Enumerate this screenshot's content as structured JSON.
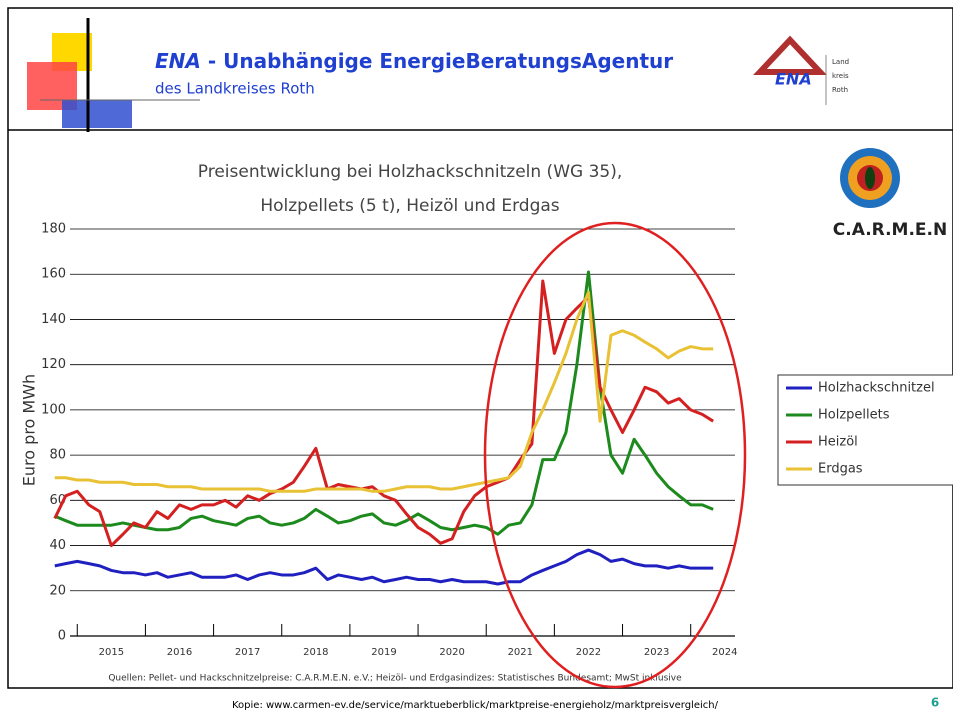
{
  "header": {
    "title_abbr": "ENA",
    "title_rest": " - Unabhängige EnergieBeratungsAgentur",
    "subtitle": "des Landkreises Roth",
    "logo_text": "ENA",
    "logo_side": [
      "Land",
      "kreis",
      "Roth"
    ]
  },
  "carmen_logo": "C.A.R.M.E.N",
  "footer": {
    "copy": "Kopie: www.carmen-ev.de/service/marktueberblick/marktpreise-energieholz/marktpreisvergleich/",
    "page": "6"
  },
  "chart_data": {
    "type": "line",
    "title": [
      "Preisentwicklung bei Holzhackschnitzeln (WG 35),",
      "Holzpellets (5 t), Heizöl und Erdgas"
    ],
    "y_label": "Euro pro MWh",
    "source": "Quellen: Pellet- und Hackschnitzelpreise: C.A.R.M.E.N. e.V.; Heizöl- und Erdgasindizes: Statistisches Bundesamt; MwSt inklusive",
    "x": [
      2014.67,
      2014.83,
      2015,
      2015.17,
      2015.33,
      2015.5,
      2015.67,
      2015.83,
      2016,
      2016.17,
      2016.33,
      2016.5,
      2016.67,
      2016.83,
      2017,
      2017.17,
      2017.33,
      2017.5,
      2017.67,
      2017.83,
      2018,
      2018.17,
      2018.33,
      2018.5,
      2018.67,
      2018.83,
      2019,
      2019.17,
      2019.33,
      2019.5,
      2019.67,
      2019.83,
      2020,
      2020.17,
      2020.33,
      2020.5,
      2020.67,
      2020.83,
      2021,
      2021.17,
      2021.33,
      2021.5,
      2021.67,
      2021.83,
      2022,
      2022.17,
      2022.33,
      2022.5,
      2022.67,
      2022.83,
      2023,
      2023.17,
      2023.33,
      2023.5,
      2023.67,
      2023.83,
      2024,
      2024.17,
      2024.33
    ],
    "series": [
      {
        "name": "Holzhackschnitzel",
        "color": "#2020c0",
        "values": [
          31,
          32,
          33,
          32,
          31,
          29,
          28,
          28,
          27,
          28,
          26,
          27,
          28,
          26,
          26,
          26,
          27,
          25,
          27,
          28,
          27,
          27,
          28,
          30,
          25,
          27,
          26,
          25,
          26,
          24,
          25,
          26,
          25,
          25,
          24,
          25,
          24,
          24,
          24,
          23,
          24,
          24,
          27,
          29,
          31,
          33,
          36,
          38,
          36,
          33,
          34,
          32,
          31,
          31,
          30,
          31,
          30,
          30,
          30
        ]
      },
      {
        "name": "Holzpellets",
        "color": "#1c8a1c",
        "values": [
          53,
          51,
          49,
          49,
          49,
          49,
          50,
          49,
          48,
          47,
          47,
          48,
          52,
          53,
          51,
          50,
          49,
          52,
          53,
          50,
          49,
          50,
          52,
          56,
          53,
          50,
          51,
          53,
          54,
          50,
          49,
          51,
          54,
          51,
          48,
          47,
          48,
          49,
          48,
          45,
          49,
          50,
          58,
          78,
          78,
          90,
          120,
          161,
          110,
          80,
          72,
          87,
          80,
          72,
          66,
          62,
          58,
          58,
          56
        ]
      },
      {
        "name": "Heizöl",
        "color": "#d42020",
        "values": [
          52,
          62,
          64,
          58,
          55,
          40,
          45,
          50,
          48,
          55,
          52,
          58,
          56,
          58,
          58,
          60,
          57,
          62,
          60,
          63,
          65,
          68,
          75,
          83,
          65,
          67,
          66,
          65,
          66,
          62,
          60,
          54,
          48,
          45,
          41,
          43,
          55,
          62,
          66,
          68,
          70,
          78,
          85,
          157,
          125,
          140,
          145,
          150,
          110,
          100,
          90,
          100,
          110,
          108,
          103,
          105,
          100,
          98,
          95
        ]
      },
      {
        "name": "Erdgas",
        "color": "#e8c234",
        "values": [
          70,
          70,
          69,
          69,
          68,
          68,
          68,
          67,
          67,
          67,
          66,
          66,
          66,
          65,
          65,
          65,
          65,
          65,
          65,
          64,
          64,
          64,
          64,
          65,
          65,
          65,
          65,
          65,
          64,
          64,
          65,
          66,
          66,
          66,
          65,
          65,
          66,
          67,
          68,
          69,
          70,
          75,
          90,
          100,
          112,
          125,
          140,
          152,
          95,
          133,
          135,
          133,
          130,
          127,
          123,
          126,
          128,
          127,
          127
        ]
      }
    ],
    "xlim": [
      2014.6,
      2024.65
    ],
    "xticks": [
      2015,
      2016,
      2017,
      2018,
      2019,
      2020,
      2021,
      2022,
      2023,
      2024
    ],
    "ylim": [
      0,
      180
    ],
    "yticks": [
      0,
      20,
      40,
      60,
      80,
      100,
      120,
      140,
      160,
      180
    ],
    "grid": true,
    "legend": "right"
  }
}
